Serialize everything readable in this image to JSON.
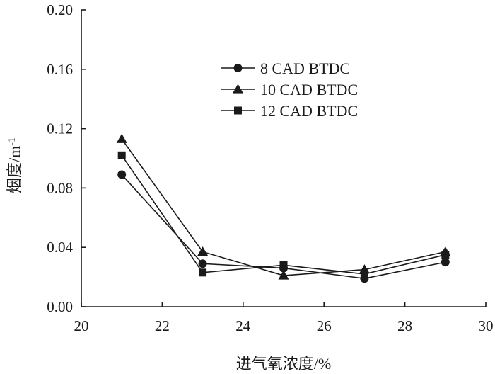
{
  "chart_data": {
    "type": "line",
    "title": "",
    "xlabel": "进气氧浓度/%",
    "ylabel": "烟度/m",
    "ylabel_sup": "-1",
    "xlim": [
      20,
      30
    ],
    "ylim": [
      0.0,
      0.2
    ],
    "xticks": [
      20,
      22,
      24,
      26,
      28,
      30
    ],
    "xtick_labels": [
      "20",
      "22",
      "24",
      "26",
      "28",
      "30"
    ],
    "yticks": [
      0.0,
      0.04,
      0.08,
      0.12,
      0.16,
      0.2
    ],
    "ytick_labels": [
      "0.00",
      "0.04",
      "0.08",
      "0.12",
      "0.16",
      "0.20"
    ],
    "grid": false,
    "legend_position": "top-right",
    "x": [
      21,
      23,
      25,
      27,
      29
    ],
    "series": [
      {
        "name": "8 CAD BTDC",
        "marker": "circle",
        "values": [
          0.089,
          0.029,
          0.026,
          0.019,
          0.03
        ]
      },
      {
        "name": "10 CAD BTDC",
        "marker": "triangle",
        "values": [
          0.113,
          0.037,
          0.021,
          0.025,
          0.037
        ]
      },
      {
        "name": "12 CAD BTDC",
        "marker": "square",
        "values": [
          0.102,
          0.023,
          0.028,
          0.022,
          0.035
        ]
      }
    ]
  }
}
